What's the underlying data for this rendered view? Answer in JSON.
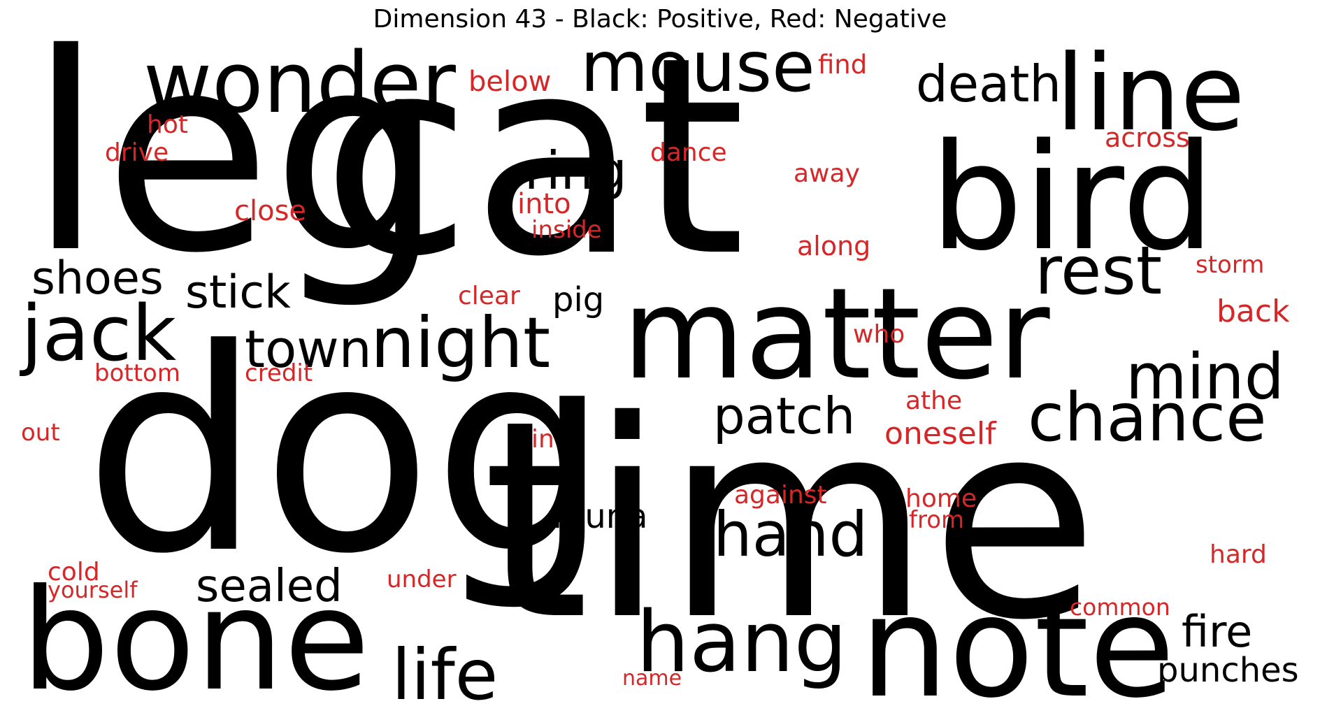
{
  "title": "Dimension 43 - Black: Positive, Red: Negative",
  "colors": {
    "positive": "#000000",
    "negative": "#d62728",
    "background": "#ffffff"
  },
  "words": [
    {
      "text": "leg",
      "polarity": "positive"
    },
    {
      "text": "cat",
      "polarity": "positive"
    },
    {
      "text": "dog",
      "polarity": "positive"
    },
    {
      "text": "time",
      "polarity": "positive"
    },
    {
      "text": "matter",
      "polarity": "positive"
    },
    {
      "text": "bird",
      "polarity": "positive"
    },
    {
      "text": "line",
      "polarity": "positive"
    },
    {
      "text": "bone",
      "polarity": "positive"
    },
    {
      "text": "note",
      "polarity": "positive"
    },
    {
      "text": "wonder",
      "polarity": "positive"
    },
    {
      "text": "mouse",
      "polarity": "positive"
    },
    {
      "text": "hang",
      "polarity": "positive"
    },
    {
      "text": "night",
      "polarity": "positive"
    },
    {
      "text": "jack",
      "polarity": "positive"
    },
    {
      "text": "chance",
      "polarity": "positive"
    },
    {
      "text": "rest",
      "polarity": "positive"
    },
    {
      "text": "death",
      "polarity": "positive"
    },
    {
      "text": "mind",
      "polarity": "positive"
    },
    {
      "text": "hand",
      "polarity": "positive"
    },
    {
      "text": "life",
      "polarity": "positive"
    },
    {
      "text": "patch",
      "polarity": "positive"
    },
    {
      "text": "ring",
      "polarity": "positive"
    },
    {
      "text": "town",
      "polarity": "positive"
    },
    {
      "text": "shoes",
      "polarity": "positive"
    },
    {
      "text": "stick",
      "polarity": "positive"
    },
    {
      "text": "sealed",
      "polarity": "positive"
    },
    {
      "text": "fire",
      "polarity": "positive"
    },
    {
      "text": "punches",
      "polarity": "positive"
    },
    {
      "text": "fauna",
      "polarity": "positive"
    },
    {
      "text": "pig",
      "polarity": "positive"
    },
    {
      "text": "below",
      "polarity": "negative"
    },
    {
      "text": "find",
      "polarity": "negative"
    },
    {
      "text": "across",
      "polarity": "negative"
    },
    {
      "text": "hot",
      "polarity": "negative"
    },
    {
      "text": "drive",
      "polarity": "negative"
    },
    {
      "text": "dance",
      "polarity": "negative"
    },
    {
      "text": "away",
      "polarity": "negative"
    },
    {
      "text": "close",
      "polarity": "negative"
    },
    {
      "text": "into",
      "polarity": "negative"
    },
    {
      "text": "inside",
      "polarity": "negative"
    },
    {
      "text": "along",
      "polarity": "negative"
    },
    {
      "text": "storm",
      "polarity": "negative"
    },
    {
      "text": "clear",
      "polarity": "negative"
    },
    {
      "text": "back",
      "polarity": "negative"
    },
    {
      "text": "who",
      "polarity": "negative"
    },
    {
      "text": "bottom",
      "polarity": "negative"
    },
    {
      "text": "credit",
      "polarity": "negative"
    },
    {
      "text": "athe",
      "polarity": "negative"
    },
    {
      "text": "oneself",
      "polarity": "negative"
    },
    {
      "text": "out",
      "polarity": "negative"
    },
    {
      "text": "in",
      "polarity": "negative"
    },
    {
      "text": "against",
      "polarity": "negative"
    },
    {
      "text": "home",
      "polarity": "negative"
    },
    {
      "text": "from",
      "polarity": "negative"
    },
    {
      "text": "hard",
      "polarity": "negative"
    },
    {
      "text": "cold",
      "polarity": "negative"
    },
    {
      "text": "yourself",
      "polarity": "negative"
    },
    {
      "text": "under",
      "polarity": "negative"
    },
    {
      "text": "common",
      "polarity": "negative"
    },
    {
      "text": "name",
      "polarity": "negative"
    }
  ]
}
